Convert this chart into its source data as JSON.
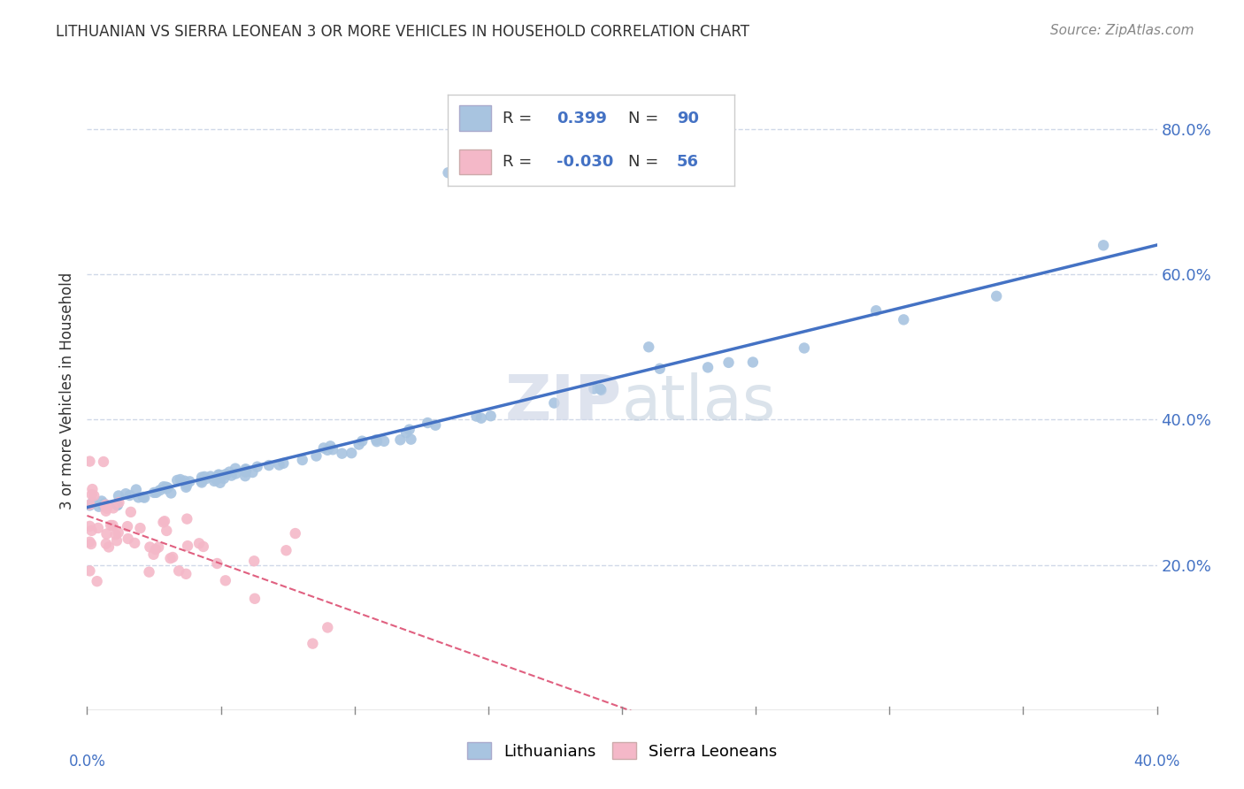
{
  "title": "LITHUANIAN VS SIERRA LEONEAN 3 OR MORE VEHICLES IN HOUSEHOLD CORRELATION CHART",
  "source": "Source: ZipAtlas.com",
  "ylabel": "3 or more Vehicles in Household",
  "ylabel_right_ticks": [
    "20.0%",
    "40.0%",
    "60.0%",
    "80.0%"
  ],
  "ylabel_right_vals": [
    0.2,
    0.4,
    0.6,
    0.8
  ],
  "xlim": [
    0.0,
    0.4
  ],
  "ylim": [
    0.0,
    0.88
  ],
  "blue_R": 0.399,
  "blue_N": 90,
  "pink_R": -0.03,
  "pink_N": 56,
  "blue_color": "#a8c4e0",
  "blue_line_color": "#4472c4",
  "pink_color": "#f4b8c8",
  "pink_line_color": "#e06080",
  "background_color": "#ffffff",
  "grid_color": "#d0d8e8",
  "legend_label_blue": "Lithuanians",
  "legend_label_pink": "Sierra Leoneans"
}
